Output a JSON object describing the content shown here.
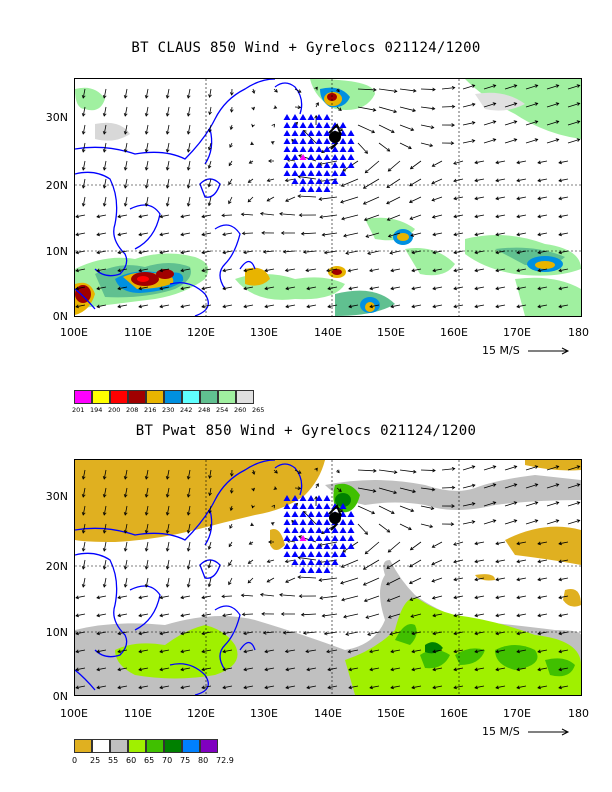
{
  "top": {
    "title": "BT CLAUS 850 Wind + Gyrelocs 021124/1200",
    "scale_label": "15 M/S",
    "legend": {
      "colors": [
        "#ff00ff",
        "#ffff00",
        "#ff0000",
        "#a00000",
        "#e8b400",
        "#0090e0",
        "#60ffff",
        "#60c090",
        "#a0f0a0",
        "#e0e0e0"
      ],
      "labels": [
        "201",
        "194",
        "200",
        "208",
        "216",
        "230",
        "242",
        "248",
        "254",
        "260",
        "265"
      ]
    }
  },
  "bottom": {
    "title": "BT Pwat 850 Wind + Gyrelocs 021124/1200",
    "scale_label": "15 M/S",
    "legend": {
      "colors": [
        "#e0b020",
        "#ffffff",
        "#c0c0c0",
        "#a0f000",
        "#40c000",
        "#008000",
        "#0080ff",
        "#8000c0"
      ],
      "labels": [
        "0",
        "25",
        "55",
        "60",
        "65",
        "70",
        "75",
        "80",
        "72.9"
      ]
    }
  },
  "axes": {
    "x_ticks": [
      "100E",
      "110E",
      "120E",
      "130E",
      "140E",
      "150E",
      "160E",
      "170E",
      "180"
    ],
    "y_ticks": [
      "30N",
      "20N",
      "10N",
      "0N"
    ]
  },
  "icons": {
    "wind": "wind-arrow-icon",
    "gyre": "gyre-triangle-icon",
    "storm": "storm-center-icon"
  }
}
